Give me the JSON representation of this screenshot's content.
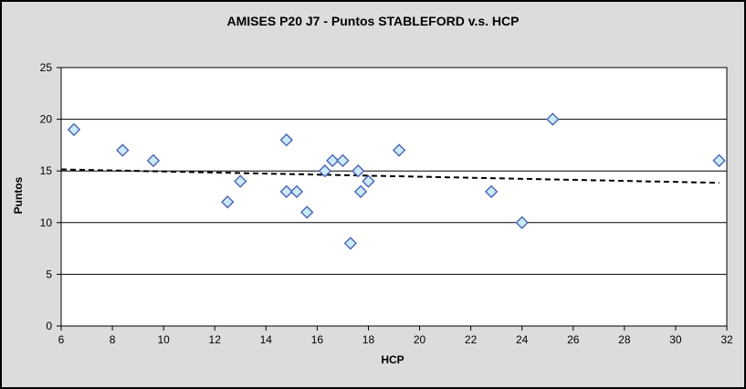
{
  "chart_data": {
    "type": "scatter",
    "title": "AMISES P20 J7 - Puntos STABLEFORD v.s. HCP",
    "xlabel": "HCP",
    "ylabel": "Puntos",
    "xlim": [
      6,
      32
    ],
    "ylim": [
      0,
      25
    ],
    "x_ticks": [
      6,
      8,
      10,
      12,
      14,
      16,
      18,
      20,
      22,
      24,
      26,
      28,
      30,
      32
    ],
    "y_ticks": [
      0,
      5,
      10,
      15,
      20,
      25
    ],
    "grid": "horizontal-only",
    "legend_position": "none",
    "series": [
      {
        "name": "Puntos STABLEFORD",
        "marker": "diamond",
        "points": [
          [
            6.5,
            19
          ],
          [
            8.4,
            17
          ],
          [
            9.6,
            16
          ],
          [
            12.5,
            12
          ],
          [
            13.0,
            14
          ],
          [
            14.8,
            18
          ],
          [
            14.8,
            13
          ],
          [
            15.2,
            13
          ],
          [
            15.6,
            11
          ],
          [
            16.3,
            15
          ],
          [
            16.6,
            16
          ],
          [
            17.0,
            16
          ],
          [
            17.3,
            8
          ],
          [
            17.6,
            15
          ],
          [
            17.7,
            13
          ],
          [
            18.0,
            14
          ],
          [
            19.2,
            17
          ],
          [
            22.8,
            13
          ],
          [
            24.0,
            10
          ],
          [
            25.2,
            20
          ],
          [
            31.7,
            16
          ]
        ]
      }
    ],
    "trendline": {
      "style": "dashed",
      "x1": 6,
      "y1": 15.15,
      "x2": 31.7,
      "y2": 13.85
    },
    "colors": {
      "chart_background": "#DCDCDC",
      "plot_background": "#FFFFFF",
      "gridline": "#000000",
      "axis": "#000000",
      "marker_fill": "#C9EBF8",
      "marker_border": "#4A62C2",
      "trendline": "#000000",
      "text": "#000000"
    }
  }
}
